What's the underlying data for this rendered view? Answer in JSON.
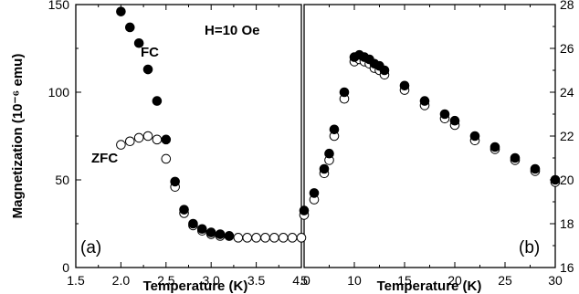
{
  "chart_data": [
    {
      "type": "scatter",
      "panel_label": "(a)",
      "xlabel": "Temperature (K)",
      "ylabel": "Magnetization (10⁻⁶ emu)",
      "xlim": [
        1.5,
        4.0
      ],
      "ylim": [
        0,
        150
      ],
      "xticks": [
        "1.5",
        "2.0",
        "2.5",
        "3.0",
        "3.5",
        "4.0"
      ],
      "yticks": [
        "0",
        "50",
        "100",
        "150"
      ],
      "annotations": [
        "H=10 Oe",
        "FC",
        "ZFC"
      ],
      "series": [
        {
          "name": "FC",
          "marker": "filled",
          "x": [
            2.0,
            2.1,
            2.2,
            2.3,
            2.4,
            2.5,
            2.6,
            2.7,
            2.8,
            2.9,
            3.0,
            3.1,
            3.2
          ],
          "y": [
            146,
            137,
            128,
            113,
            95,
            73,
            49,
            33,
            25,
            22,
            20,
            19,
            18
          ]
        },
        {
          "name": "ZFC",
          "marker": "open",
          "x": [
            2.0,
            2.1,
            2.2,
            2.3,
            2.4,
            2.5,
            2.6,
            2.7,
            2.8,
            2.9,
            3.0,
            3.1,
            3.2,
            3.3,
            3.4,
            3.5,
            3.6,
            3.7,
            3.8,
            3.9,
            4.0
          ],
          "y": [
            70,
            72,
            74,
            75,
            73,
            62,
            46,
            31,
            24,
            21,
            19,
            18,
            18,
            17,
            17,
            17,
            17,
            17,
            17,
            17,
            17
          ]
        }
      ]
    },
    {
      "type": "scatter",
      "panel_label": "(b)",
      "xlabel": "Temperature (K)",
      "xlim": [
        5,
        30
      ],
      "ylim": [
        16,
        28
      ],
      "xticks": [
        "5",
        "10",
        "15",
        "20",
        "25",
        "30"
      ],
      "yticks": [
        "16",
        "18",
        "20",
        "22",
        "24",
        "26",
        "28"
      ],
      "series": [
        {
          "marker": "filled",
          "x": [
            5,
            6,
            7,
            7.5,
            8,
            9,
            10,
            10.5,
            11,
            11.5,
            12,
            12.5,
            13,
            15,
            17,
            19,
            20,
            22,
            24,
            26,
            28,
            30
          ],
          "y": [
            18.6,
            19.4,
            20.5,
            21.2,
            22.3,
            24.0,
            25.6,
            25.7,
            25.6,
            25.5,
            25.3,
            25.2,
            25.0,
            24.3,
            23.6,
            23.0,
            22.7,
            22.0,
            21.5,
            21.0,
            20.5,
            20.0
          ]
        },
        {
          "marker": "open",
          "x": [
            5,
            6,
            7,
            7.5,
            8,
            9,
            10,
            10.5,
            11,
            11.5,
            12,
            12.5,
            13,
            15,
            17,
            19,
            20,
            22,
            24,
            26,
            28,
            30
          ],
          "y": [
            18.4,
            19.1,
            20.3,
            20.9,
            22.0,
            23.7,
            25.4,
            25.5,
            25.4,
            25.3,
            25.1,
            25.0,
            24.8,
            24.1,
            23.4,
            22.8,
            22.5,
            21.8,
            21.4,
            20.9,
            20.4,
            19.9
          ]
        }
      ]
    }
  ]
}
